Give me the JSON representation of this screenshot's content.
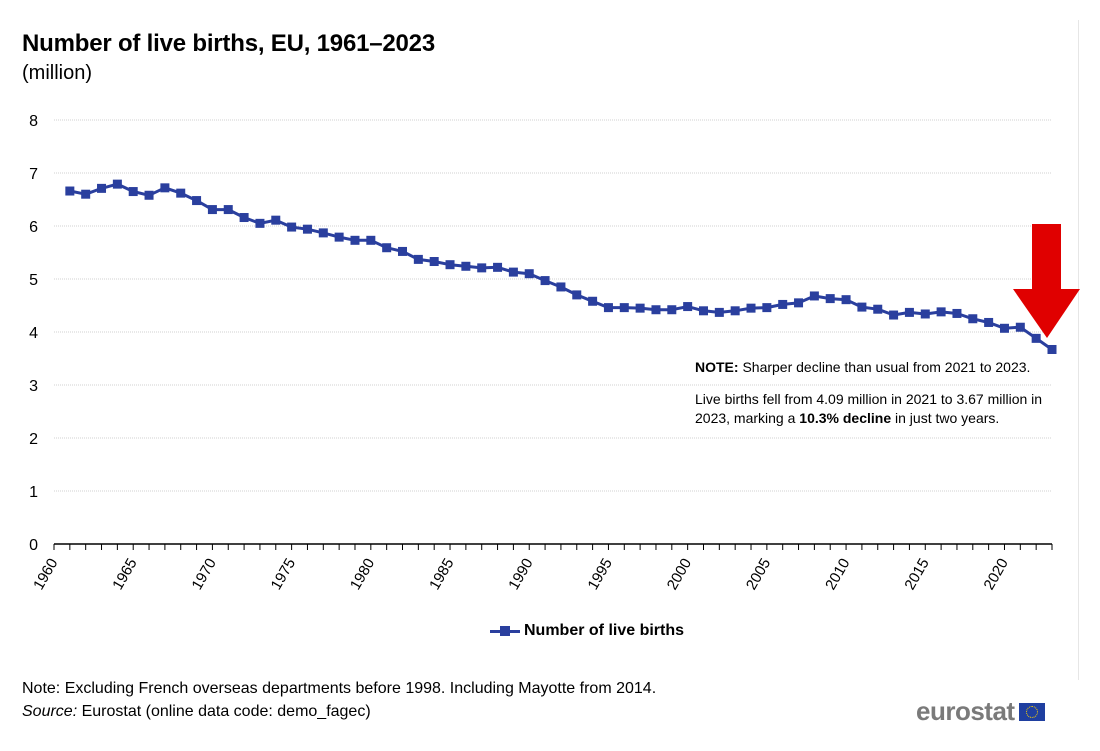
{
  "chart_data": {
    "type": "line",
    "title": "Number of live births, EU, 1961–2023",
    "subtitle": "(million)",
    "xlabel": "",
    "ylabel": "",
    "ylim": [
      0,
      8
    ],
    "yticks": [
      0,
      1,
      2,
      3,
      4,
      5,
      6,
      7,
      8
    ],
    "xticks": [
      1960,
      1965,
      1970,
      1975,
      1980,
      1985,
      1990,
      1995,
      2000,
      2005,
      2010,
      2015,
      2020
    ],
    "x": [
      1961,
      1962,
      1963,
      1964,
      1965,
      1966,
      1967,
      1968,
      1969,
      1970,
      1971,
      1972,
      1973,
      1974,
      1975,
      1976,
      1977,
      1978,
      1979,
      1980,
      1981,
      1982,
      1983,
      1984,
      1985,
      1986,
      1987,
      1988,
      1989,
      1990,
      1991,
      1992,
      1993,
      1994,
      1995,
      1996,
      1997,
      1998,
      1999,
      2000,
      2001,
      2002,
      2003,
      2004,
      2005,
      2006,
      2007,
      2008,
      2009,
      2010,
      2011,
      2012,
      2013,
      2014,
      2015,
      2016,
      2017,
      2018,
      2019,
      2020,
      2021,
      2022,
      2023
    ],
    "series": [
      {
        "name": "Number of live births",
        "color": "#2a3f9e",
        "values": [
          6.66,
          6.6,
          6.71,
          6.79,
          6.65,
          6.58,
          6.72,
          6.62,
          6.48,
          6.31,
          6.31,
          6.16,
          6.05,
          6.11,
          5.98,
          5.94,
          5.87,
          5.79,
          5.73,
          5.73,
          5.59,
          5.52,
          5.37,
          5.33,
          5.27,
          5.24,
          5.21,
          5.22,
          5.13,
          5.1,
          4.97,
          4.85,
          4.7,
          4.58,
          4.46,
          4.46,
          4.45,
          4.42,
          4.42,
          4.48,
          4.4,
          4.37,
          4.4,
          4.45,
          4.46,
          4.52,
          4.55,
          4.68,
          4.63,
          4.61,
          4.47,
          4.43,
          4.32,
          4.37,
          4.34,
          4.38,
          4.35,
          4.25,
          4.18,
          4.07,
          4.09,
          3.88,
          3.67
        ]
      }
    ],
    "grid": true,
    "legend": "bottom-center"
  },
  "annotation": {
    "note_label": "NOTE:",
    "note_text": " Sharper decline than usual from 2021 to 2023.",
    "detail_pre": "Live births fell from 4.09 million in 2021 to 3.67 million in 2023, marking a ",
    "detail_bold": "10.3% decline",
    "detail_post": " in just two years.",
    "arrow_color": "#e00000"
  },
  "footer": {
    "note": "Note: Excluding French overseas departments before 1998. Including Mayotte from 2014.",
    "source_label": "Source:",
    "source_text": " Eurostat (online data code: demo_fagec)"
  },
  "logo": {
    "text": "eurostat"
  }
}
